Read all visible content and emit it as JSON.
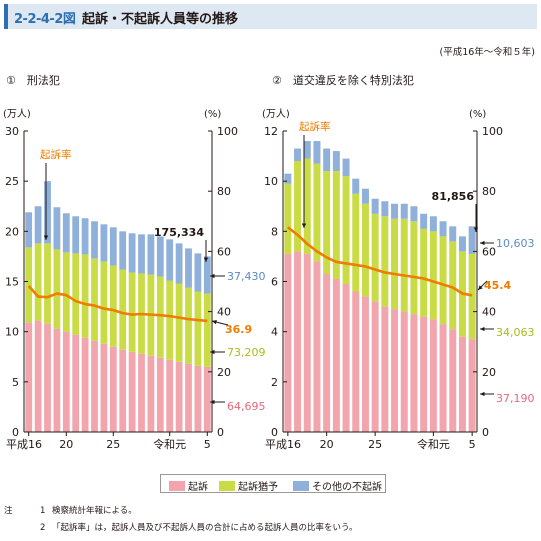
{
  "header": {
    "number": "2-2-4-2図",
    "title": "起訴・不起訴人員等の推移",
    "period": "(平成16年～令和５年)"
  },
  "colors": {
    "prosecution": "#f2a5ad",
    "suspension": "#c9dc45",
    "other": "#8eb0da",
    "rate": "#ee7d00",
    "header_bg": "#dde8f3",
    "header_accent": "#2d6fb3"
  },
  "legend": {
    "items": [
      {
        "label": "起訴",
        "color": "#f2a5ad"
      },
      {
        "label": "起訴猶予",
        "color": "#c9dc45"
      },
      {
        "label": "その他の不起訴",
        "color": "#8eb0da"
      }
    ]
  },
  "notes": {
    "label": "注",
    "items": [
      {
        "num": "1",
        "text": "検察統計年報による。"
      },
      {
        "num": "2",
        "text": "「起訴率」は，起訴人員及び不起訴人員の合計に占める起訴人員の比率をいう。"
      }
    ]
  },
  "chart_data": [
    {
      "type": "bar",
      "title": "①　刑法犯",
      "stacked": true,
      "x": [
        "平成16",
        "17",
        "18",
        "19",
        "20",
        "21",
        "22",
        "23",
        "24",
        "25",
        "26",
        "27",
        "28",
        "29",
        "30",
        "令和元",
        "2",
        "3",
        "4",
        "5"
      ],
      "x_tick_labels": [
        {
          "index": 0,
          "label": "平成16"
        },
        {
          "index": 4,
          "label": "20"
        },
        {
          "index": 9,
          "label": "25"
        },
        {
          "index": 15,
          "label": "令和元"
        },
        {
          "index": 19,
          "label": "5"
        }
      ],
      "ylabel_left": "(万人)",
      "ylabel_right": "(%)",
      "ylim_left": [
        0,
        30
      ],
      "yticks_left": [
        "0",
        "5",
        "10",
        "15",
        "20",
        "25",
        "30"
      ],
      "ylim_right": [
        0,
        100
      ],
      "yticks_right": [
        "0",
        "20",
        "40",
        "60",
        "80",
        "100"
      ],
      "series": [
        {
          "name": "起訴",
          "axis": "left",
          "values": [
            10.9,
            11.1,
            10.8,
            10.3,
            10.0,
            9.7,
            9.4,
            9.1,
            8.8,
            8.5,
            8.2,
            8.0,
            7.8,
            7.6,
            7.4,
            7.2,
            7.0,
            6.8,
            6.6,
            6.5
          ]
        },
        {
          "name": "起訴猶予",
          "axis": "left",
          "values": [
            7.5,
            7.7,
            8.0,
            7.9,
            7.9,
            8.1,
            8.3,
            8.2,
            8.2,
            8.1,
            8.0,
            7.9,
            8.0,
            8.1,
            8.1,
            7.9,
            7.8,
            7.6,
            7.4,
            7.3
          ]
        },
        {
          "name": "その他の不起訴",
          "axis": "left",
          "values": [
            3.5,
            3.7,
            6.2,
            4.2,
            3.9,
            3.7,
            3.6,
            3.7,
            3.7,
            3.8,
            3.8,
            3.9,
            3.9,
            4.0,
            4.0,
            4.1,
            4.0,
            3.9,
            3.8,
            3.7
          ]
        },
        {
          "name": "起訴率",
          "axis": "right",
          "type": "line",
          "values": [
            48.5,
            45.0,
            44.8,
            46.0,
            45.5,
            43.5,
            42.5,
            42.0,
            41.0,
            40.5,
            39.5,
            39.0,
            39.2,
            39.0,
            38.8,
            38.5,
            38.0,
            37.5,
            37.2,
            36.9
          ]
        }
      ],
      "annotations": {
        "rate_label": "起訴率",
        "total": "175,334",
        "other": "37,430",
        "rate": "36.9",
        "suspension": "73,209",
        "prosecution": "64,695"
      },
      "grid": false
    },
    {
      "type": "bar",
      "title": "②　道交違反を除く特別法犯",
      "stacked": true,
      "x": [
        "平成16",
        "17",
        "18",
        "19",
        "20",
        "21",
        "22",
        "23",
        "24",
        "25",
        "26",
        "27",
        "28",
        "29",
        "30",
        "令和元",
        "2",
        "3",
        "4",
        "5"
      ],
      "x_tick_labels": [
        {
          "index": 0,
          "label": "平成16"
        },
        {
          "index": 4,
          "label": "20"
        },
        {
          "index": 9,
          "label": "25"
        },
        {
          "index": 15,
          "label": "令和元"
        },
        {
          "index": 19,
          "label": "5"
        }
      ],
      "ylabel_left": "(万人)",
      "ylabel_right": "(%)",
      "ylim_left": [
        0,
        12
      ],
      "yticks_left": [
        "0",
        "2",
        "4",
        "6",
        "8",
        "10",
        "12"
      ],
      "ylim_right": [
        0,
        100
      ],
      "yticks_right": [
        "0",
        "20",
        "40",
        "60",
        "80",
        "100"
      ],
      "series": [
        {
          "name": "起訴",
          "axis": "left",
          "values": [
            7.1,
            7.2,
            7.1,
            6.8,
            6.3,
            6.1,
            5.9,
            5.6,
            5.4,
            5.2,
            5.0,
            4.9,
            4.8,
            4.7,
            4.6,
            4.5,
            4.3,
            4.1,
            3.8,
            3.7
          ]
        },
        {
          "name": "起訴猶予",
          "axis": "left",
          "values": [
            2.8,
            3.6,
            3.8,
            3.9,
            4.1,
            4.3,
            4.3,
            3.9,
            3.7,
            3.5,
            3.6,
            3.6,
            3.7,
            3.7,
            3.5,
            3.5,
            3.5,
            3.5,
            3.4,
            3.4
          ]
        },
        {
          "name": "その他の不起訴",
          "axis": "left",
          "values": [
            0.4,
            0.5,
            0.7,
            0.9,
            0.9,
            0.8,
            0.7,
            0.6,
            0.6,
            0.6,
            0.6,
            0.6,
            0.6,
            0.6,
            0.6,
            0.6,
            0.6,
            0.6,
            0.6,
            1.1
          ]
        },
        {
          "name": "起訴率",
          "axis": "right",
          "type": "line",
          "values": [
            68.0,
            65.5,
            62.5,
            60.0,
            58.0,
            56.5,
            56.0,
            55.5,
            55.0,
            54.0,
            53.0,
            52.5,
            52.0,
            51.5,
            51.0,
            50.0,
            49.0,
            48.0,
            46.0,
            45.4
          ]
        }
      ],
      "annotations": {
        "rate_label": "起訴率",
        "total": "81,856",
        "other": "10,603",
        "rate": "45.4",
        "suspension": "34,063",
        "prosecution": "37,190"
      },
      "grid": false
    }
  ]
}
